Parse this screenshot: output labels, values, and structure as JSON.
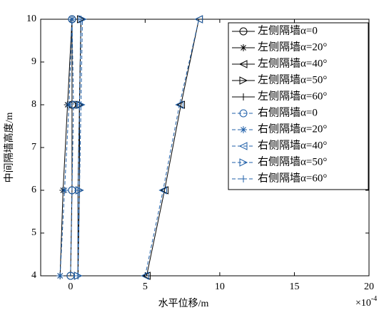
{
  "chart_data": {
    "type": "line",
    "x_label": "水平位移/m",
    "y_label": "中间隔墙高度/m",
    "x_multiplier": {
      "base": "×10",
      "power": "-4"
    },
    "y": [
      4,
      6,
      8,
      10
    ],
    "xlim": [
      -2,
      20
    ],
    "xticks": [
      0,
      5,
      10,
      15,
      20
    ],
    "ylim": [
      4,
      10
    ],
    "yticks": [
      4,
      5,
      6,
      7,
      8,
      9,
      10
    ],
    "legend": "upper-right",
    "series": [
      {
        "name": "左侧隔墙α=0",
        "color": "#000000",
        "marker": "circle",
        "dashed": false,
        "values": [
          0.0,
          0.1,
          0.1,
          0.1
        ]
      },
      {
        "name": "左侧隔墙α=20°",
        "color": "#000000",
        "marker": "star",
        "dashed": false,
        "values": [
          -0.7,
          -0.5,
          -0.2,
          0.1
        ]
      },
      {
        "name": "左侧隔墙α=40°",
        "color": "#000000",
        "marker": "triangle-left",
        "dashed": false,
        "values": [
          5.1,
          6.3,
          7.4,
          8.6
        ]
      },
      {
        "name": "左侧隔墙α=50°",
        "color": "#000000",
        "marker": "triangle-right",
        "dashed": false,
        "values": [
          0.5,
          0.6,
          0.6,
          0.7
        ]
      },
      {
        "name": "左侧隔墙α=60°",
        "color": "#000000",
        "marker": "plus",
        "dashed": false,
        "values": [
          0.5,
          0.5,
          0.6,
          0.7
        ]
      },
      {
        "name": "右侧隔墙α=0",
        "color": "#1f5fa8",
        "marker": "circle",
        "dashed": true,
        "values": [
          0.0,
          0.1,
          0.2,
          0.1
        ]
      },
      {
        "name": "右侧隔墙α=20°",
        "color": "#1f5fa8",
        "marker": "star",
        "dashed": true,
        "values": [
          -0.7,
          -0.4,
          -0.1,
          0.1
        ]
      },
      {
        "name": "右侧隔墙α=40°",
        "color": "#1f5fa8",
        "marker": "triangle-left",
        "dashed": true,
        "values": [
          5.0,
          6.2,
          7.3,
          8.6
        ]
      },
      {
        "name": "右侧隔墙α=50°",
        "color": "#1f5fa8",
        "marker": "triangle-right",
        "dashed": true,
        "values": [
          0.5,
          0.6,
          0.7,
          0.8
        ]
      },
      {
        "name": "右侧隔墙α=60°",
        "color": "#1f5fa8",
        "marker": "plus",
        "dashed": true,
        "values": [
          0.5,
          0.5,
          0.6,
          0.7
        ]
      }
    ]
  }
}
